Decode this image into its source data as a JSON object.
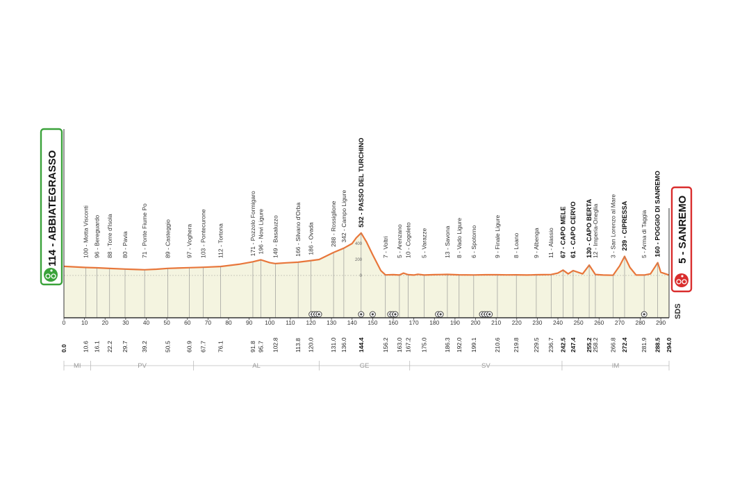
{
  "chart_data": {
    "type": "area",
    "title": "",
    "xlabel": "",
    "ylabel": "",
    "xlim": [
      0,
      294
    ],
    "ylim": [
      0,
      700
    ],
    "grid": false,
    "x_ticks": [
      0,
      10,
      20,
      30,
      40,
      50,
      60,
      70,
      80,
      90,
      100,
      110,
      120,
      130,
      140,
      150,
      160,
      170,
      180,
      190,
      200,
      210,
      220,
      230,
      240,
      250,
      260,
      270,
      280,
      290
    ],
    "altitude_ticks": [
      0,
      200,
      400
    ],
    "profile": {
      "x": [
        0,
        10.6,
        16.1,
        22.2,
        29.7,
        35,
        39.2,
        45,
        50.5,
        60.9,
        67.7,
        76.1,
        85,
        91.8,
        95.7,
        100,
        102.8,
        108,
        113.8,
        120,
        124,
        131,
        136,
        140,
        142,
        144.4,
        147,
        150,
        154,
        156.2,
        160,
        163,
        165,
        167.2,
        170,
        172,
        175,
        180,
        186.3,
        192,
        199.1,
        205,
        210.6,
        215,
        219.8,
        225,
        229.5,
        233,
        236.7,
        240,
        242.5,
        245,
        247.4,
        252,
        255.2,
        258.2,
        262,
        266.8,
        270,
        272.4,
        275,
        278,
        281.9,
        285,
        288.5,
        290,
        294
      ],
      "y": [
        114,
        100,
        96,
        88,
        80,
        75,
        71,
        78,
        89,
        97,
        103,
        112,
        140,
        171,
        196,
        160,
        149,
        158,
        166,
        186,
        200,
        288,
        342,
        400,
        470,
        532,
        420,
        260,
        60,
        7,
        10,
        5,
        30,
        10,
        5,
        15,
        5,
        10,
        13,
        8,
        6,
        9,
        9,
        7,
        8,
        5,
        9,
        10,
        11,
        30,
        67,
        20,
        61,
        20,
        130,
        12,
        5,
        3,
        120,
        239,
        100,
        5,
        5,
        20,
        160,
        40,
        5
      ]
    },
    "waypoints": [
      {
        "km": "0.0",
        "label": "114 - ABBIATEGRASSO",
        "pos": 0,
        "type": "start"
      },
      {
        "km": "10.6",
        "label": "100 - Motta Visconti",
        "pos": 10.6
      },
      {
        "km": "16.1",
        "label": "96 - Bereguardo",
        "pos": 16.1
      },
      {
        "km": "22.2",
        "label": "88 - Torre d'Isola",
        "pos": 22.2
      },
      {
        "km": "29.7",
        "label": "80 - Pavia",
        "pos": 29.7
      },
      {
        "km": "39.2",
        "label": "71 - Ponte Fiume Po",
        "pos": 39.2
      },
      {
        "km": "50.5",
        "label": "89 - Casteggio",
        "pos": 50.5
      },
      {
        "km": "60.9",
        "label": "97 - Voghera",
        "pos": 60.9
      },
      {
        "km": "67.7",
        "label": "103 - Pontecurone",
        "pos": 67.7
      },
      {
        "km": "76.1",
        "label": "112 - Tortona",
        "pos": 76.1
      },
      {
        "km": "91.8",
        "label": "171 - Pozzolo Formigaro",
        "pos": 91.8
      },
      {
        "km": "95.7",
        "label": "196 - Novi Ligure",
        "pos": 95.7
      },
      {
        "km": "102.8",
        "label": "149 - Basaluzzo",
        "pos": 102.8
      },
      {
        "km": "113.8",
        "label": "166 - Silvano d'Orba",
        "pos": 113.8
      },
      {
        "km": "120.0",
        "label": "186 - Ovada",
        "pos": 120.0
      },
      {
        "km": "131.0",
        "label": "288 - Rossiglione",
        "pos": 131.0
      },
      {
        "km": "136.0",
        "label": "342 - Campo Ligure",
        "pos": 136.0
      },
      {
        "km": "144.4",
        "label": "532 - PASSO DEL TURCHINO",
        "pos": 144.4,
        "type": "climb"
      },
      {
        "km": "156.2",
        "label": "7 - Voltri",
        "pos": 156.2
      },
      {
        "km": "163.0",
        "label": "5 - Arenzano",
        "pos": 163.0
      },
      {
        "km": "167.2",
        "label": "10 - Cogoleto",
        "pos": 167.2
      },
      {
        "km": "175.0",
        "label": "5 - Varazze",
        "pos": 175.0
      },
      {
        "km": "186.3",
        "label": "13 - Savona",
        "pos": 186.3
      },
      {
        "km": "192.0",
        "label": "8 - Vado Ligure",
        "pos": 192.0
      },
      {
        "km": "199.1",
        "label": "6 - Spotorno",
        "pos": 199.1
      },
      {
        "km": "210.6",
        "label": "9 - Finale Ligure",
        "pos": 210.6
      },
      {
        "km": "219.8",
        "label": "8 - Loano",
        "pos": 219.8
      },
      {
        "km": "229.5",
        "label": "9 - Albenga",
        "pos": 229.5
      },
      {
        "km": "236.7",
        "label": "11 - Alassio",
        "pos": 236.7
      },
      {
        "km": "242.5",
        "label": "67 - CAPO MELE",
        "pos": 242.5,
        "type": "climb"
      },
      {
        "km": "247.4",
        "label": "61 - CAPO CERVO",
        "pos": 247.4,
        "type": "climb"
      },
      {
        "km": "255.2",
        "label": "130 - CAPO BERTA",
        "pos": 255.2,
        "type": "climb"
      },
      {
        "km": "258.2",
        "label": "12 - Imperia-Oneglia",
        "pos": 258.2
      },
      {
        "km": "266.8",
        "label": "3 - San Lorenzo al Mare",
        "pos": 266.8
      },
      {
        "km": "272.4",
        "label": "239 - CIPRESSA",
        "pos": 272.4,
        "type": "climb"
      },
      {
        "km": "281.9",
        "label": "5 - Arma di Taggia",
        "pos": 281.9
      },
      {
        "km": "288.5",
        "label": "160 - POGGIO DI SANREMO",
        "pos": 288.5,
        "type": "climb"
      },
      {
        "km": "294.0",
        "label": "5 - SANREMO",
        "pos": 294,
        "type": "finish"
      }
    ],
    "provinces": [
      {
        "name": "MI",
        "start": 0,
        "end": 13
      },
      {
        "name": "PV",
        "start": 13,
        "end": 63
      },
      {
        "name": "AL",
        "start": 63,
        "end": 124
      },
      {
        "name": "GE",
        "start": 124,
        "end": 168
      },
      {
        "name": "SV",
        "start": 168,
        "end": 242
      },
      {
        "name": "IM",
        "start": 242,
        "end": 294
      }
    ],
    "markers": [
      120.4,
      121.6,
      122.8,
      123.9,
      144.4,
      150.0,
      158.6,
      159.8,
      161.0,
      181.8,
      183.0,
      203.2,
      204.4,
      205.6,
      206.8,
      281.9
    ]
  },
  "logo": "SDS",
  "colors": {
    "profile_line": "#e8763a",
    "profile_fill": "#f4f4e0",
    "start_badge": "#3aa23a",
    "finish_badge": "#d92d2d",
    "axis": "#333333"
  }
}
